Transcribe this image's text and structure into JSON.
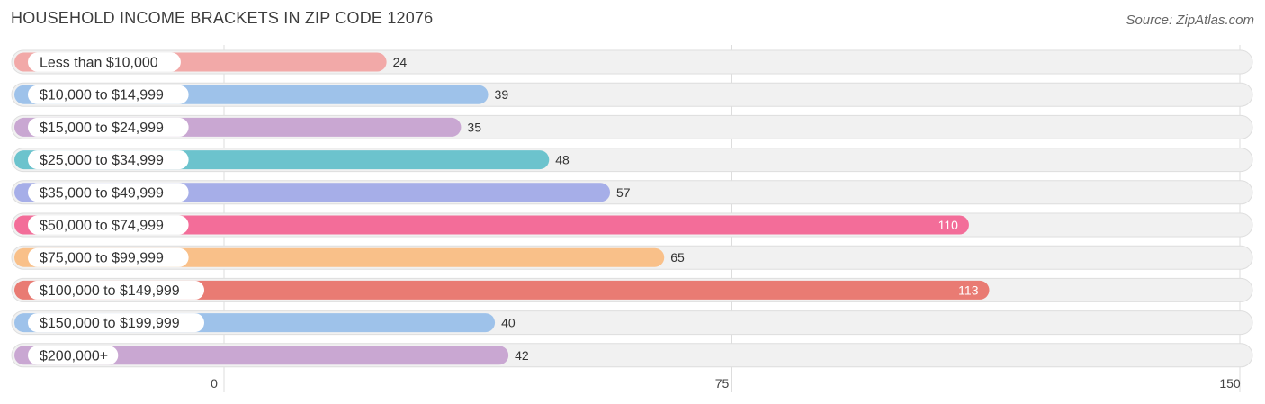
{
  "header": {
    "title": "HOUSEHOLD INCOME BRACKETS IN ZIP CODE 12076",
    "source": "Source: ZipAtlas.com"
  },
  "chart_data": {
    "type": "bar",
    "orientation": "horizontal",
    "title": "HOUSEHOLD INCOME BRACKETS IN ZIP CODE 12076",
    "categories": [
      "Less than $10,000",
      "$10,000 to $14,999",
      "$15,000 to $24,999",
      "$25,000 to $34,999",
      "$35,000 to $49,999",
      "$50,000 to $74,999",
      "$75,000 to $99,999",
      "$100,000 to $149,999",
      "$150,000 to $199,999",
      "$200,000+"
    ],
    "values": [
      24,
      39,
      35,
      48,
      57,
      110,
      65,
      113,
      40,
      42
    ],
    "colors": [
      "#f2a9a8",
      "#9ec2ea",
      "#c9a7d2",
      "#6cc3cd",
      "#a6aee8",
      "#f36d99",
      "#f9c089",
      "#e97b73",
      "#9ec2ea",
      "#c9a7d2"
    ],
    "xlim": [
      0,
      150
    ],
    "xticks": [
      0,
      75,
      150
    ],
    "grid": true
  }
}
